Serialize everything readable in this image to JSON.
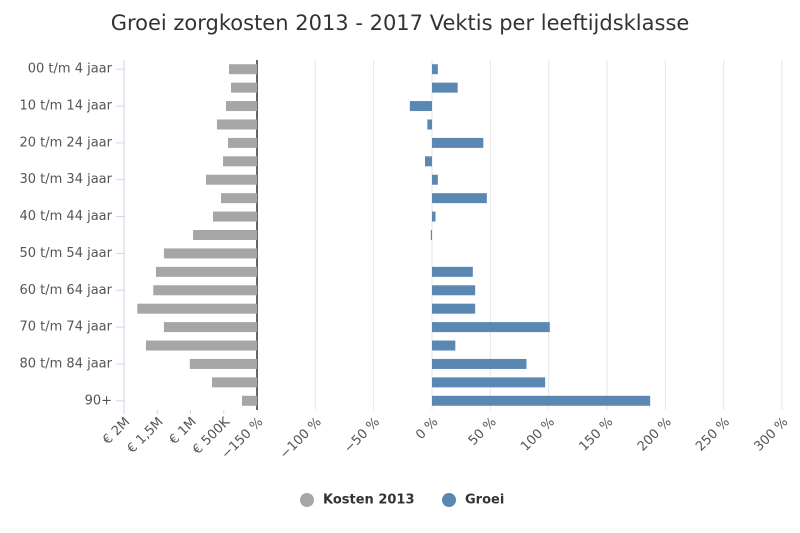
{
  "chart_data": {
    "type": "bar",
    "title": "Groei zorgkosten 2013 - 2017 Vektis per leeftijdsklasse",
    "categories": [
      "00 t/m 4 jaar",
      null,
      "10 t/m 14 jaar",
      null,
      "20 t/m 24 jaar",
      null,
      "30 t/m 34 jaar",
      null,
      "40 t/m 44 jaar",
      null,
      "50 t/m 54 jaar",
      null,
      "60 t/m 64 jaar",
      null,
      "70 t/m 74 jaar",
      null,
      "80 t/m 84 jaar",
      null,
      "90+"
    ],
    "series": [
      {
        "name": "Kosten 2013",
        "color": "#a6a6a6",
        "axis": "x",
        "values": [
          421000,
          391000,
          466000,
          602000,
          436000,
          511000,
          767000,
          541000,
          662000,
          962000,
          1400000,
          1520000,
          1560000,
          1800000,
          1400000,
          1670000,
          1010000,
          677000,
          226000
        ]
      },
      {
        "name": "Groei",
        "color": "#5b87b3",
        "axis": "x2",
        "values": [
          5,
          22,
          -19,
          -4,
          44,
          -6,
          5,
          47,
          3,
          -1,
          0,
          35,
          37,
          37,
          101,
          20,
          81,
          97,
          187
        ]
      }
    ],
    "xlim": [
      2000000,
      0
    ],
    "xticks": [
      {
        "value": 2000000,
        "label": "€ 2M"
      },
      {
        "value": 1500000,
        "label": "€ 1,5M"
      },
      {
        "value": 1000000,
        "label": "€ 1M"
      },
      {
        "value": 500000,
        "label": "€ 500K"
      }
    ],
    "x2lim": [
      -150,
      300
    ],
    "x2ticks": [
      {
        "value": -150,
        "label": "−150 %"
      },
      {
        "value": -100,
        "label": "−100 %"
      },
      {
        "value": -50,
        "label": "−50 %"
      },
      {
        "value": 0,
        "label": "0 %"
      },
      {
        "value": 50,
        "label": "50 %"
      },
      {
        "value": 100,
        "label": "100 %"
      },
      {
        "value": 150,
        "label": "150 %"
      },
      {
        "value": 200,
        "label": "200 %"
      },
      {
        "value": 250,
        "label": "250 %"
      },
      {
        "value": 300,
        "label": "300 %"
      }
    ],
    "grid": true,
    "legend": "bottom"
  }
}
